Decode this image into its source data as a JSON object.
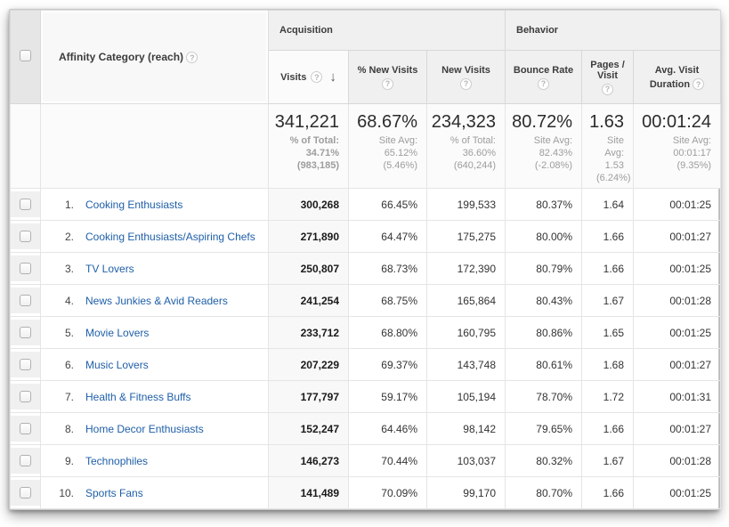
{
  "table": {
    "dimension_header": "Affinity Category (reach)",
    "sections": [
      {
        "label": "Acquisition"
      },
      {
        "label": "Behavior"
      }
    ],
    "columns": [
      {
        "label": "Visits",
        "sorted": "desc"
      },
      {
        "label": "% New Visits"
      },
      {
        "label": "New Visits"
      },
      {
        "label": "Bounce Rate"
      },
      {
        "label": "Pages / Visit"
      },
      {
        "label": "Avg. Visit Duration"
      }
    ],
    "summary": [
      {
        "value": "341,221",
        "sub": "% of Total: 34.71% (983,185)"
      },
      {
        "value": "68.67%",
        "sub": "Site Avg: 65.12% (5.46%)"
      },
      {
        "value": "234,323",
        "sub": "% of Total: 36.60% (640,244)"
      },
      {
        "value": "80.72%",
        "sub": "Site Avg: 82.43% (-2.08%)"
      },
      {
        "value": "1.63",
        "sub": "Site Avg: 1.53 (6.24%)"
      },
      {
        "value": "00:01:24",
        "sub": "Site Avg: 00:01:17 (9.35%)"
      }
    ],
    "rows": [
      {
        "rank": "1.",
        "category": "Cooking Enthusiasts",
        "visits": "300,268",
        "pct_new": "66.45%",
        "new_visits": "199,533",
        "bounce": "80.37%",
        "pages": "1.64",
        "duration": "00:01:25"
      },
      {
        "rank": "2.",
        "category": "Cooking Enthusiasts/Aspiring Chefs",
        "visits": "271,890",
        "pct_new": "64.47%",
        "new_visits": "175,275",
        "bounce": "80.00%",
        "pages": "1.66",
        "duration": "00:01:27"
      },
      {
        "rank": "3.",
        "category": "TV Lovers",
        "visits": "250,807",
        "pct_new": "68.73%",
        "new_visits": "172,390",
        "bounce": "80.79%",
        "pages": "1.66",
        "duration": "00:01:25"
      },
      {
        "rank": "4.",
        "category": "News Junkies & Avid Readers",
        "visits": "241,254",
        "pct_new": "68.75%",
        "new_visits": "165,864",
        "bounce": "80.43%",
        "pages": "1.67",
        "duration": "00:01:28"
      },
      {
        "rank": "5.",
        "category": "Movie Lovers",
        "visits": "233,712",
        "pct_new": "68.80%",
        "new_visits": "160,795",
        "bounce": "80.86%",
        "pages": "1.65",
        "duration": "00:01:25"
      },
      {
        "rank": "6.",
        "category": "Music Lovers",
        "visits": "207,229",
        "pct_new": "69.37%",
        "new_visits": "143,748",
        "bounce": "80.61%",
        "pages": "1.68",
        "duration": "00:01:27"
      },
      {
        "rank": "7.",
        "category": "Health & Fitness Buffs",
        "visits": "177,797",
        "pct_new": "59.17%",
        "new_visits": "105,194",
        "bounce": "78.70%",
        "pages": "1.72",
        "duration": "00:01:31"
      },
      {
        "rank": "8.",
        "category": "Home Decor Enthusiasts",
        "visits": "152,247",
        "pct_new": "64.46%",
        "new_visits": "98,142",
        "bounce": "79.65%",
        "pages": "1.66",
        "duration": "00:01:27"
      },
      {
        "rank": "9.",
        "category": "Technophiles",
        "visits": "146,273",
        "pct_new": "70.44%",
        "new_visits": "103,037",
        "bounce": "80.32%",
        "pages": "1.67",
        "duration": "00:01:28"
      },
      {
        "rank": "10.",
        "category": "Sports Fans",
        "visits": "141,489",
        "pct_new": "70.09%",
        "new_visits": "99,170",
        "bounce": "80.70%",
        "pages": "1.66",
        "duration": "00:01:25"
      }
    ]
  },
  "icons": {
    "help": "?",
    "sort_desc": "↓"
  },
  "colors": {
    "link_blue": "#1f5fa8",
    "header_bg": "#f0f0f0",
    "sorted_col_bg": "#f8f8f8",
    "subtext": "#9d9d9d"
  }
}
